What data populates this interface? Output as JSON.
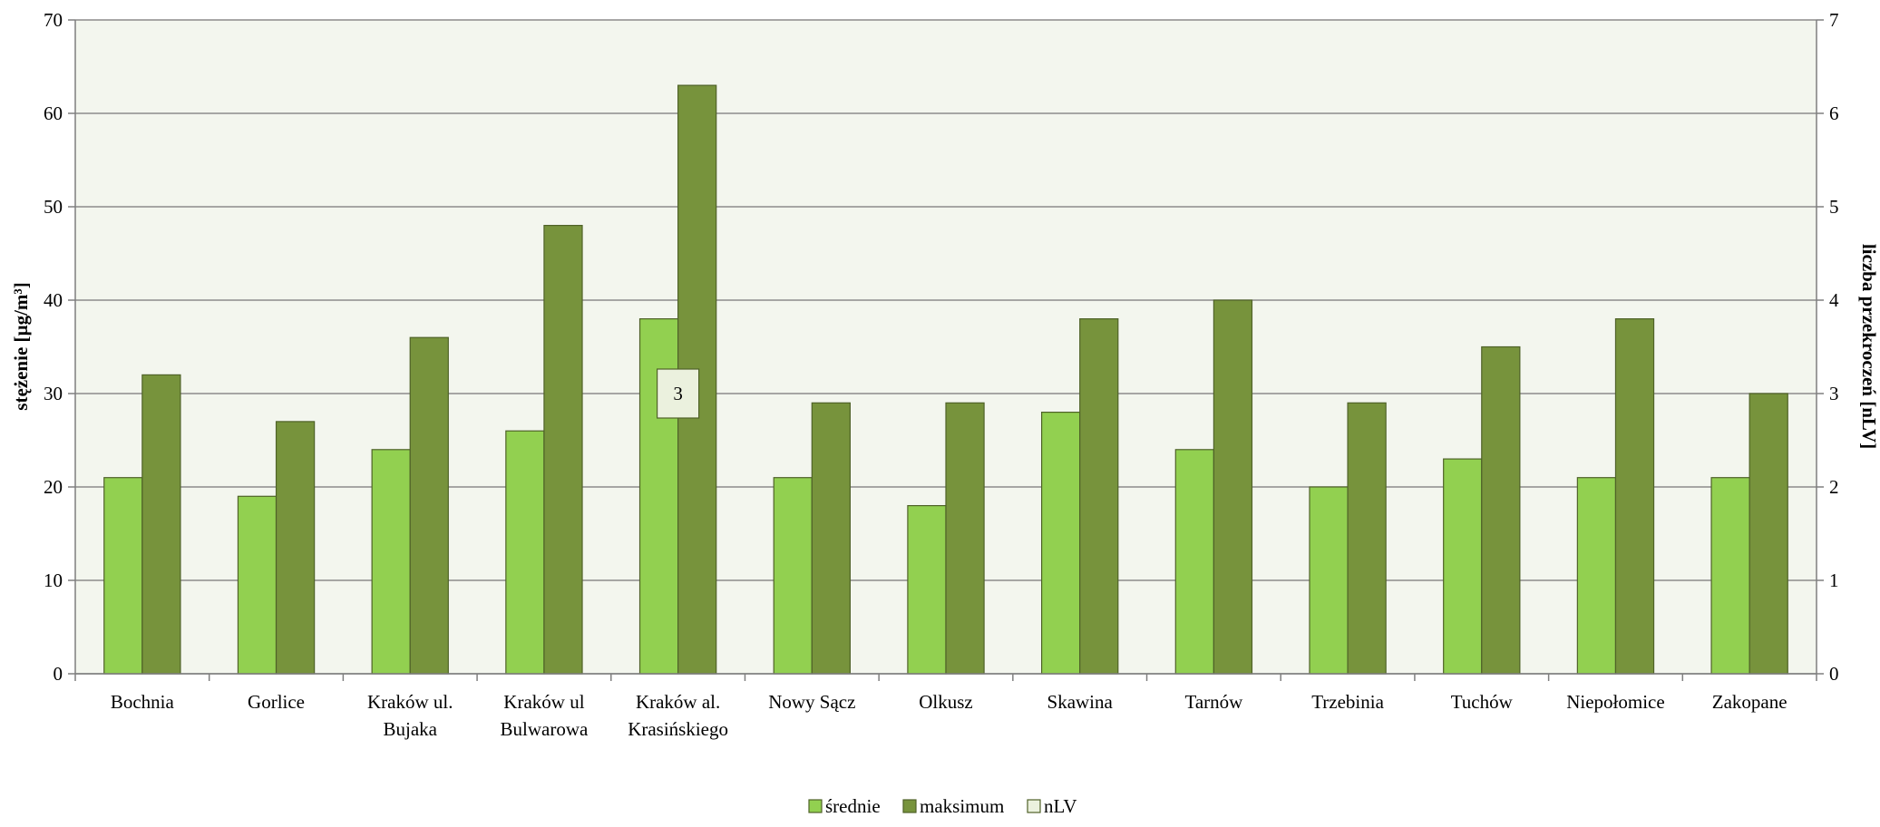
{
  "chart_data": {
    "type": "bar",
    "categories": [
      [
        "Bochnia"
      ],
      [
        "Gorlice"
      ],
      [
        "Kraków ul.",
        "Bujaka"
      ],
      [
        "Kraków ul",
        "Bulwarowa"
      ],
      [
        "Kraków al.",
        "Krasińskiego"
      ],
      [
        "Nowy Sącz"
      ],
      [
        "Olkusz"
      ],
      [
        "Skawina"
      ],
      [
        "Tarnów"
      ],
      [
        "Trzebinia"
      ],
      [
        "Tuchów"
      ],
      [
        "Niepołomice"
      ],
      [
        "Zakopane"
      ]
    ],
    "series": [
      {
        "name": "średnie",
        "axis": "left",
        "color": "#92d050",
        "values": [
          21,
          19,
          24,
          26,
          38,
          21,
          18,
          28,
          24,
          20,
          23,
          21,
          21
        ]
      },
      {
        "name": "maksimum",
        "axis": "left",
        "color": "#77933c",
        "values": [
          32,
          27,
          36,
          48,
          63,
          29,
          29,
          38,
          40,
          29,
          35,
          38,
          30
        ]
      },
      {
        "name": "nLV",
        "axis": "right",
        "color": "#ebf1de",
        "values": [
          0,
          0,
          0,
          0,
          3,
          0,
          0,
          0,
          0,
          0,
          0,
          0,
          0
        ]
      }
    ],
    "data_labels": [
      {
        "category_index": 4,
        "text": "3"
      }
    ],
    "ylabel_left": "stężenie [µg/m³]",
    "ylabel_right": "liczba przekroczeń [nLV]",
    "ylim_left": [
      0,
      70
    ],
    "ylim_right": [
      0,
      7
    ],
    "yticks_left": [
      "0",
      "10",
      "20",
      "30",
      "40",
      "50",
      "60",
      "70"
    ],
    "yticks_right": [
      "0",
      "1",
      "2",
      "3",
      "4",
      "5",
      "6",
      "7"
    ],
    "grid": true,
    "plot_background": "#f3f6ee",
    "legend_position": "bottom"
  }
}
